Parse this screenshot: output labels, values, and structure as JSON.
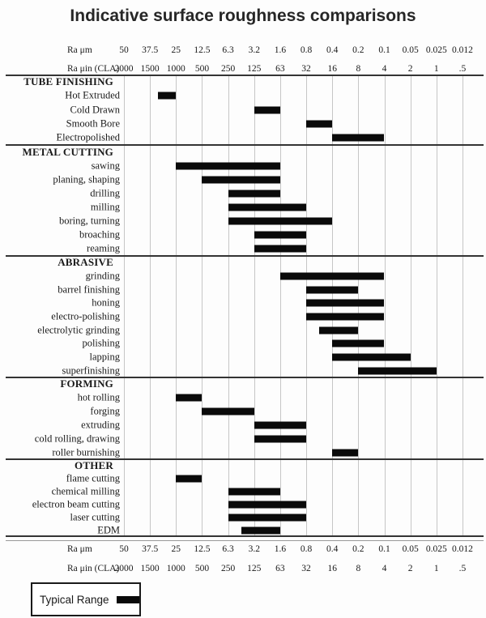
{
  "title": "Indicative surface roughness comparisons",
  "axis": {
    "um_label": "Ra μm",
    "uin_label": "Ra μin (CLA)",
    "um_ticks": [
      "50",
      "37.5",
      "25",
      "12.5",
      "6.3",
      "3.2",
      "1.6",
      "0.8",
      "0.4",
      "0.2",
      "0.1",
      "0.05",
      "0.025",
      "0.012"
    ],
    "uin_ticks": [
      "2000",
      "1500",
      "1000",
      "500",
      "250",
      "125",
      "63",
      "32",
      "16",
      "8",
      "4",
      "2",
      "1",
      ".5"
    ]
  },
  "legend": {
    "label": "Typical Range"
  },
  "chart_data": {
    "type": "bar",
    "subtype": "horizontal-range-bars",
    "title": "Indicative surface roughness comparisons",
    "grid": true,
    "bar_color": "#0a0a0a",
    "x_scale_top_label": "Ra μm",
    "x_scale_top_ticks": [
      50,
      37.5,
      25,
      12.5,
      6.3,
      3.2,
      1.6,
      0.8,
      0.4,
      0.2,
      0.1,
      0.05,
      0.025,
      0.012
    ],
    "x_scale_bottom_label": "Ra μin (CLA)",
    "x_scale_bottom_ticks": [
      2000,
      1500,
      1000,
      500,
      250,
      125,
      63,
      32,
      16,
      8,
      4,
      2,
      1,
      0.5
    ],
    "legend": "Typical Range",
    "sections": [
      {
        "name": "TUBE FINISHING",
        "rows": [
          {
            "label": "Hot Extruded",
            "ra_um_from": 32,
            "ra_um_to": 25,
            "col_from": 1.3,
            "col_to": 2
          },
          {
            "label": "Cold Drawn",
            "ra_um_from": 3.2,
            "ra_um_to": 1.6,
            "col_from": 5,
            "col_to": 6
          },
          {
            "label": "Smooth Bore",
            "ra_um_from": 0.8,
            "ra_um_to": 0.4,
            "col_from": 7,
            "col_to": 8
          },
          {
            "label": "Electropolished",
            "ra_um_from": 0.4,
            "ra_um_to": 0.1,
            "col_from": 8,
            "col_to": 10
          }
        ]
      },
      {
        "name": "METAL CUTTING",
        "rows": [
          {
            "label": "sawing",
            "ra_um_from": 25,
            "ra_um_to": 1.6,
            "col_from": 2,
            "col_to": 6
          },
          {
            "label": "planing, shaping",
            "ra_um_from": 12.5,
            "ra_um_to": 1.6,
            "col_from": 3,
            "col_to": 6
          },
          {
            "label": "drilling",
            "ra_um_from": 6.3,
            "ra_um_to": 1.6,
            "col_from": 4,
            "col_to": 6
          },
          {
            "label": "milling",
            "ra_um_from": 6.3,
            "ra_um_to": 0.8,
            "col_from": 4,
            "col_to": 7
          },
          {
            "label": "boring, turning",
            "ra_um_from": 6.3,
            "ra_um_to": 0.4,
            "col_from": 4,
            "col_to": 8
          },
          {
            "label": "broaching",
            "ra_um_from": 3.2,
            "ra_um_to": 0.8,
            "col_from": 5,
            "col_to": 7
          },
          {
            "label": "reaming",
            "ra_um_from": 3.2,
            "ra_um_to": 0.8,
            "col_from": 5,
            "col_to": 7
          }
        ]
      },
      {
        "name": "ABRASIVE",
        "rows": [
          {
            "label": "grinding",
            "ra_um_from": 1.6,
            "ra_um_to": 0.1,
            "col_from": 6,
            "col_to": 10
          },
          {
            "label": "barrel finishing",
            "ra_um_from": 0.8,
            "ra_um_to": 0.2,
            "col_from": 7,
            "col_to": 9
          },
          {
            "label": "honing",
            "ra_um_from": 0.8,
            "ra_um_to": 0.1,
            "col_from": 7,
            "col_to": 10
          },
          {
            "label": "electro-polishing",
            "ra_um_from": 0.8,
            "ra_um_to": 0.1,
            "col_from": 7,
            "col_to": 10
          },
          {
            "label": "electrolytic grinding",
            "ra_um_from": 0.6,
            "ra_um_to": 0.2,
            "col_from": 7.5,
            "col_to": 9
          },
          {
            "label": "polishing",
            "ra_um_from": 0.4,
            "ra_um_to": 0.1,
            "col_from": 8,
            "col_to": 10
          },
          {
            "label": "lapping",
            "ra_um_from": 0.4,
            "ra_um_to": 0.05,
            "col_from": 8,
            "col_to": 11
          },
          {
            "label": "superfinishing",
            "ra_um_from": 0.2,
            "ra_um_to": 0.025,
            "col_from": 9,
            "col_to": 12
          }
        ]
      },
      {
        "name": "FORMING",
        "rows": [
          {
            "label": "hot rolling",
            "ra_um_from": 25,
            "ra_um_to": 12.5,
            "col_from": 2,
            "col_to": 3
          },
          {
            "label": "forging",
            "ra_um_from": 12.5,
            "ra_um_to": 3.2,
            "col_from": 3,
            "col_to": 5
          },
          {
            "label": "extruding",
            "ra_um_from": 3.2,
            "ra_um_to": 0.8,
            "col_from": 5,
            "col_to": 7
          },
          {
            "label": "cold rolling, drawing",
            "ra_um_from": 3.2,
            "ra_um_to": 0.8,
            "col_from": 5,
            "col_to": 7
          },
          {
            "label": "roller burnishing",
            "ra_um_from": 0.4,
            "ra_um_to": 0.2,
            "col_from": 8,
            "col_to": 9
          }
        ]
      },
      {
        "name": "OTHER",
        "rows": [
          {
            "label": "flame cutting",
            "ra_um_from": 25,
            "ra_um_to": 12.5,
            "col_from": 2,
            "col_to": 3
          },
          {
            "label": "chemical milling",
            "ra_um_from": 6.3,
            "ra_um_to": 1.6,
            "col_from": 4,
            "col_to": 6
          },
          {
            "label": "electron beam cutting",
            "ra_um_from": 6.3,
            "ra_um_to": 0.8,
            "col_from": 4,
            "col_to": 7
          },
          {
            "label": "laser cutting",
            "ra_um_from": 6.3,
            "ra_um_to": 0.8,
            "col_from": 4,
            "col_to": 7
          },
          {
            "label": "EDM",
            "ra_um_from": 4.5,
            "ra_um_to": 1.6,
            "col_from": 4.5,
            "col_to": 6
          }
        ]
      }
    ]
  }
}
